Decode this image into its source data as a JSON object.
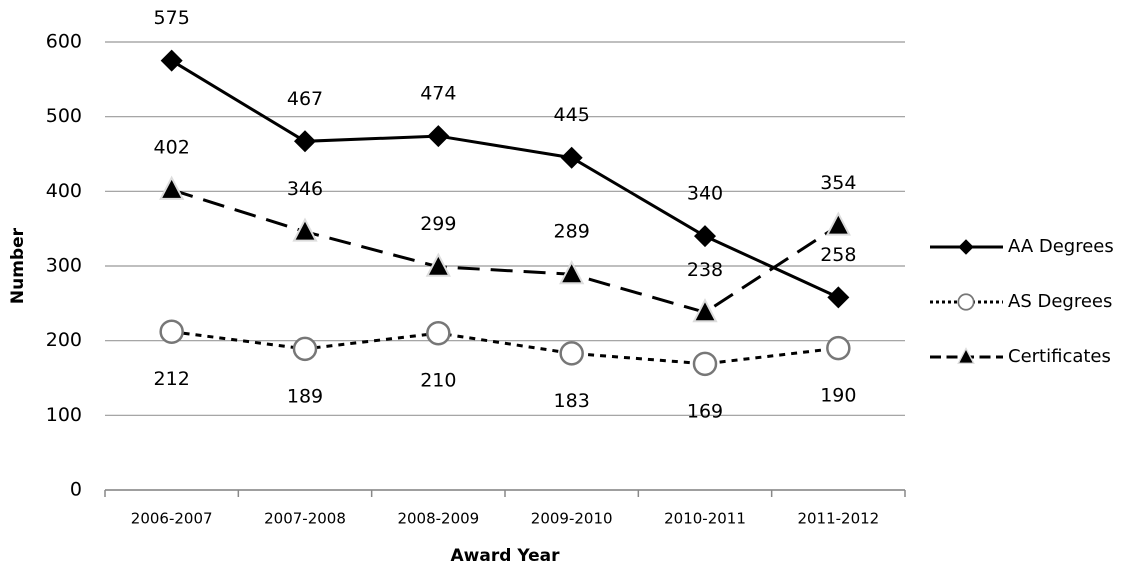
{
  "chart_data": {
    "type": "line",
    "x_label": "Award Year",
    "y_label": "Number",
    "categories": [
      "2006-2007",
      "2007-2008",
      "2008-2009",
      "2009-2010",
      "2010-2011",
      "2011-2012"
    ],
    "series": [
      {
        "name": "AA Degrees",
        "color": "#000000",
        "marker": "diamond",
        "dash": "solid",
        "label_position": "above",
        "values": [
          575,
          467,
          474,
          445,
          340,
          258
        ]
      },
      {
        "name": "AS Degrees",
        "color": "#000000",
        "marker": "circle",
        "dash": "short",
        "label_position": "below",
        "values": [
          212,
          189,
          210,
          183,
          169,
          190
        ]
      },
      {
        "name": "Certificates",
        "color": "#000000",
        "marker": "triangle",
        "dash": "long",
        "label_position": "above",
        "values": [
          402,
          346,
          299,
          289,
          238,
          354
        ]
      }
    ],
    "ylim": [
      0,
      600
    ],
    "yticks": [
      0,
      100,
      200,
      300,
      400,
      500,
      600
    ],
    "grid": true,
    "legend": "right"
  }
}
